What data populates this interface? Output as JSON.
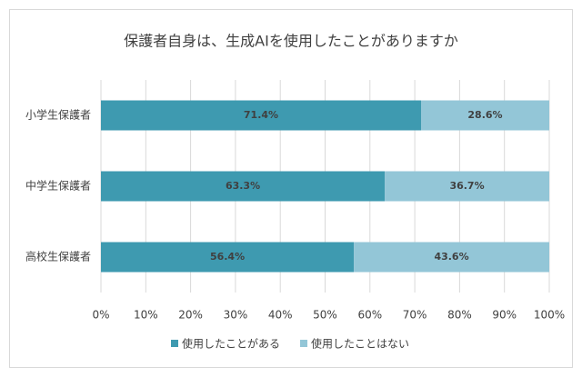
{
  "chart_data": {
    "type": "stacked-bar-horizontal",
    "title": "保護者自身は、生成AIを使用したことがありますか",
    "categories": [
      "小学生保護者",
      "中学生保護者",
      "高校生保護者"
    ],
    "series": [
      {
        "name": "使用したことがある",
        "color": "#3e9ab0",
        "values": [
          71.4,
          63.3,
          56.4
        ],
        "value_labels": [
          "71.4%",
          "63.3%",
          "56.4%"
        ]
      },
      {
        "name": "使用したことはない",
        "color": "#93c6d7",
        "values": [
          28.6,
          36.7,
          43.6
        ],
        "value_labels": [
          "28.6%",
          "36.7%",
          "43.6%"
        ]
      }
    ],
    "xlim": [
      0,
      100
    ],
    "xticks": [
      {
        "value": 0,
        "label": "0%"
      },
      {
        "value": 10,
        "label": "10%"
      },
      {
        "value": 20,
        "label": "20%"
      },
      {
        "value": 30,
        "label": "30%"
      },
      {
        "value": 40,
        "label": "40%"
      },
      {
        "value": 50,
        "label": "50%"
      },
      {
        "value": 60,
        "label": "60%"
      },
      {
        "value": 70,
        "label": "70%"
      },
      {
        "value": 80,
        "label": "80%"
      },
      {
        "value": 90,
        "label": "90%"
      },
      {
        "value": 100,
        "label": "100%"
      }
    ],
    "grid": true,
    "legend": "bottom"
  }
}
